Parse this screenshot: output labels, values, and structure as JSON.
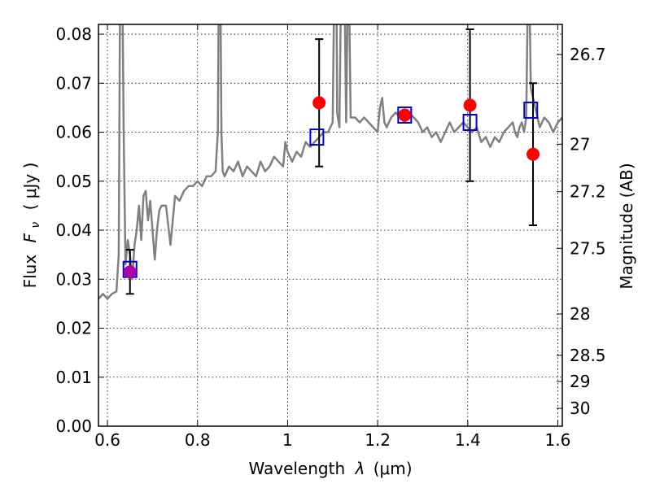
{
  "chart_data": {
    "type": "line",
    "xlabel_prefix": "Wavelength",
    "xlabel_symbol": "λ",
    "xlabel_unit": "(μm)",
    "ylabel_prefix": "Flux",
    "ylabel_symbol": "F",
    "ylabel_sub": "ν",
    "ylabel_unit": "( μJy )",
    "y2label": "Magnitude (AB)",
    "xlim": [
      0.58,
      1.61
    ],
    "ylim": [
      0.0,
      0.082
    ],
    "grid": true,
    "x_ticks": [
      0.6,
      0.8,
      1.0,
      1.2,
      1.4,
      1.6
    ],
    "x_tick_labels": [
      "0.6",
      "0.8",
      "1",
      "1.2",
      "1.4",
      "1.6"
    ],
    "y_ticks": [
      0.0,
      0.01,
      0.02,
      0.03,
      0.04,
      0.05,
      0.06,
      0.07,
      0.08
    ],
    "y_tick_labels": [
      "0.00",
      "0.01",
      "0.02",
      "0.03",
      "0.04",
      "0.05",
      "0.06",
      "0.07",
      "0.08"
    ],
    "mag_ticks": [
      26.7,
      27.0,
      27.2,
      27.5,
      28.0,
      28.5,
      29.0,
      30.0
    ],
    "mag_tick_labels": [
      "26.7",
      "27",
      "27.2",
      "27.5",
      "28",
      "28.5",
      "29",
      "30"
    ],
    "colors": {
      "spectrum": "#808080",
      "observed": "#ff0000",
      "model": "#0000cc",
      "errorbar": "#000000",
      "grid": "#b0b0b0",
      "overlap": "#aa00aa"
    },
    "series": [
      {
        "kind": "spectrum",
        "x": [
          0.58,
          0.59,
          0.6,
          0.61,
          0.62,
          0.625,
          0.628,
          0.632,
          0.636,
          0.64,
          0.645,
          0.65,
          0.655,
          0.66,
          0.665,
          0.67,
          0.675,
          0.68,
          0.685,
          0.69,
          0.695,
          0.7,
          0.705,
          0.71,
          0.715,
          0.72,
          0.73,
          0.74,
          0.75,
          0.76,
          0.77,
          0.78,
          0.79,
          0.8,
          0.81,
          0.82,
          0.83,
          0.84,
          0.845,
          0.848,
          0.85,
          0.853,
          0.856,
          0.86,
          0.87,
          0.88,
          0.89,
          0.9,
          0.91,
          0.92,
          0.93,
          0.94,
          0.95,
          0.96,
          0.97,
          0.98,
          0.99,
          0.995,
          1.0,
          1.005,
          1.01,
          1.02,
          1.03,
          1.04,
          1.05,
          1.06,
          1.07,
          1.08,
          1.09,
          1.1,
          1.105,
          1.108,
          1.11,
          1.115,
          1.12,
          1.125,
          1.13,
          1.135,
          1.14,
          1.15,
          1.16,
          1.17,
          1.18,
          1.19,
          1.2,
          1.205,
          1.21,
          1.215,
          1.22,
          1.23,
          1.24,
          1.25,
          1.26,
          1.27,
          1.28,
          1.29,
          1.3,
          1.31,
          1.32,
          1.33,
          1.34,
          1.35,
          1.36,
          1.37,
          1.38,
          1.39,
          1.4,
          1.41,
          1.42,
          1.43,
          1.44,
          1.45,
          1.46,
          1.47,
          1.48,
          1.49,
          1.5,
          1.505,
          1.51,
          1.515,
          1.52,
          1.525,
          1.53,
          1.535,
          1.54,
          1.55,
          1.56,
          1.57,
          1.58,
          1.59,
          1.6,
          1.61
        ],
        "y": [
          0.026,
          0.027,
          0.026,
          0.027,
          0.0275,
          0.035,
          0.09,
          0.1,
          0.06,
          0.033,
          0.038,
          0.035,
          0.03,
          0.037,
          0.04,
          0.045,
          0.038,
          0.047,
          0.048,
          0.042,
          0.046,
          0.04,
          0.034,
          0.04,
          0.044,
          0.045,
          0.045,
          0.037,
          0.047,
          0.046,
          0.048,
          0.049,
          0.049,
          0.05,
          0.049,
          0.051,
          0.051,
          0.052,
          0.06,
          0.1,
          0.1,
          0.06,
          0.052,
          0.051,
          0.053,
          0.052,
          0.054,
          0.051,
          0.053,
          0.052,
          0.051,
          0.054,
          0.052,
          0.053,
          0.055,
          0.054,
          0.053,
          0.058,
          0.056,
          0.055,
          0.054,
          0.056,
          0.055,
          0.058,
          0.057,
          0.058,
          0.059,
          0.06,
          0.06,
          0.062,
          0.1,
          0.1,
          0.064,
          0.061,
          0.1,
          0.1,
          0.062,
          0.1,
          0.063,
          0.063,
          0.062,
          0.063,
          0.062,
          0.061,
          0.06,
          0.065,
          0.067,
          0.062,
          0.061,
          0.063,
          0.064,
          0.063,
          0.062,
          0.064,
          0.063,
          0.062,
          0.06,
          0.061,
          0.059,
          0.06,
          0.058,
          0.06,
          0.062,
          0.06,
          0.061,
          0.062,
          0.061,
          0.06,
          0.061,
          0.058,
          0.059,
          0.057,
          0.059,
          0.058,
          0.06,
          0.061,
          0.062,
          0.06,
          0.059,
          0.061,
          0.062,
          0.06,
          0.063,
          0.1,
          0.069,
          0.065,
          0.061,
          0.063,
          0.062,
          0.06,
          0.062,
          0.063
        ]
      },
      {
        "kind": "observed",
        "x": [
          0.65,
          1.07,
          1.26,
          1.405,
          1.545
        ],
        "y": [
          0.0315,
          0.066,
          0.0635,
          0.0655,
          0.0555
        ],
        "yerr_low": [
          0.027,
          0.053,
          0.063,
          0.05,
          0.041
        ],
        "yerr_high": [
          0.036,
          0.079,
          0.064,
          0.081,
          0.07
        ]
      },
      {
        "kind": "model",
        "x": [
          0.65,
          1.065,
          1.26,
          1.405,
          1.54
        ],
        "y": [
          0.032,
          0.059,
          0.0635,
          0.062,
          0.0645
        ]
      }
    ]
  }
}
